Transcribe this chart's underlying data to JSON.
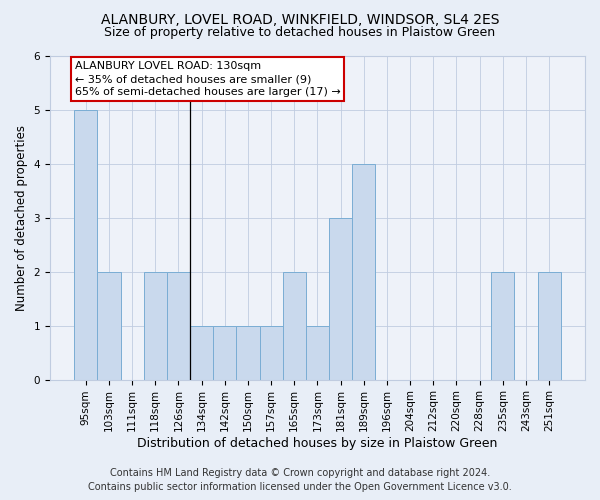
{
  "title1": "ALANBURY, LOVEL ROAD, WINKFIELD, WINDSOR, SL4 2ES",
  "title2": "Size of property relative to detached houses in Plaistow Green",
  "xlabel": "Distribution of detached houses by size in Plaistow Green",
  "ylabel": "Number of detached properties",
  "categories": [
    "95sqm",
    "103sqm",
    "111sqm",
    "118sqm",
    "126sqm",
    "134sqm",
    "142sqm",
    "150sqm",
    "157sqm",
    "165sqm",
    "173sqm",
    "181sqm",
    "189sqm",
    "196sqm",
    "204sqm",
    "212sqm",
    "220sqm",
    "228sqm",
    "235sqm",
    "243sqm",
    "251sqm"
  ],
  "values": [
    5,
    2,
    0,
    2,
    2,
    1,
    1,
    1,
    1,
    2,
    1,
    3,
    4,
    0,
    0,
    0,
    0,
    0,
    2,
    0,
    2
  ],
  "bar_color": "#c9d9ed",
  "bar_edge_color": "#7aadd4",
  "highlight_index": 5,
  "annotation_text": "ALANBURY LOVEL ROAD: 130sqm\n← 35% of detached houses are smaller (9)\n65% of semi-detached houses are larger (17) →",
  "annotation_box_color": "white",
  "annotation_box_edge_color": "#cc0000",
  "ylim": [
    0,
    6
  ],
  "yticks": [
    0,
    1,
    2,
    3,
    4,
    5,
    6
  ],
  "footer1": "Contains HM Land Registry data © Crown copyright and database right 2024.",
  "footer2": "Contains public sector information licensed under the Open Government Licence v3.0.",
  "bg_color": "#e8eef7",
  "plot_bg_color": "#eef2f9",
  "grid_color": "#c0cce0",
  "title1_fontsize": 10,
  "title2_fontsize": 9,
  "xlabel_fontsize": 9,
  "ylabel_fontsize": 8.5,
  "tick_fontsize": 7.5,
  "annotation_fontsize": 8,
  "footer_fontsize": 7
}
